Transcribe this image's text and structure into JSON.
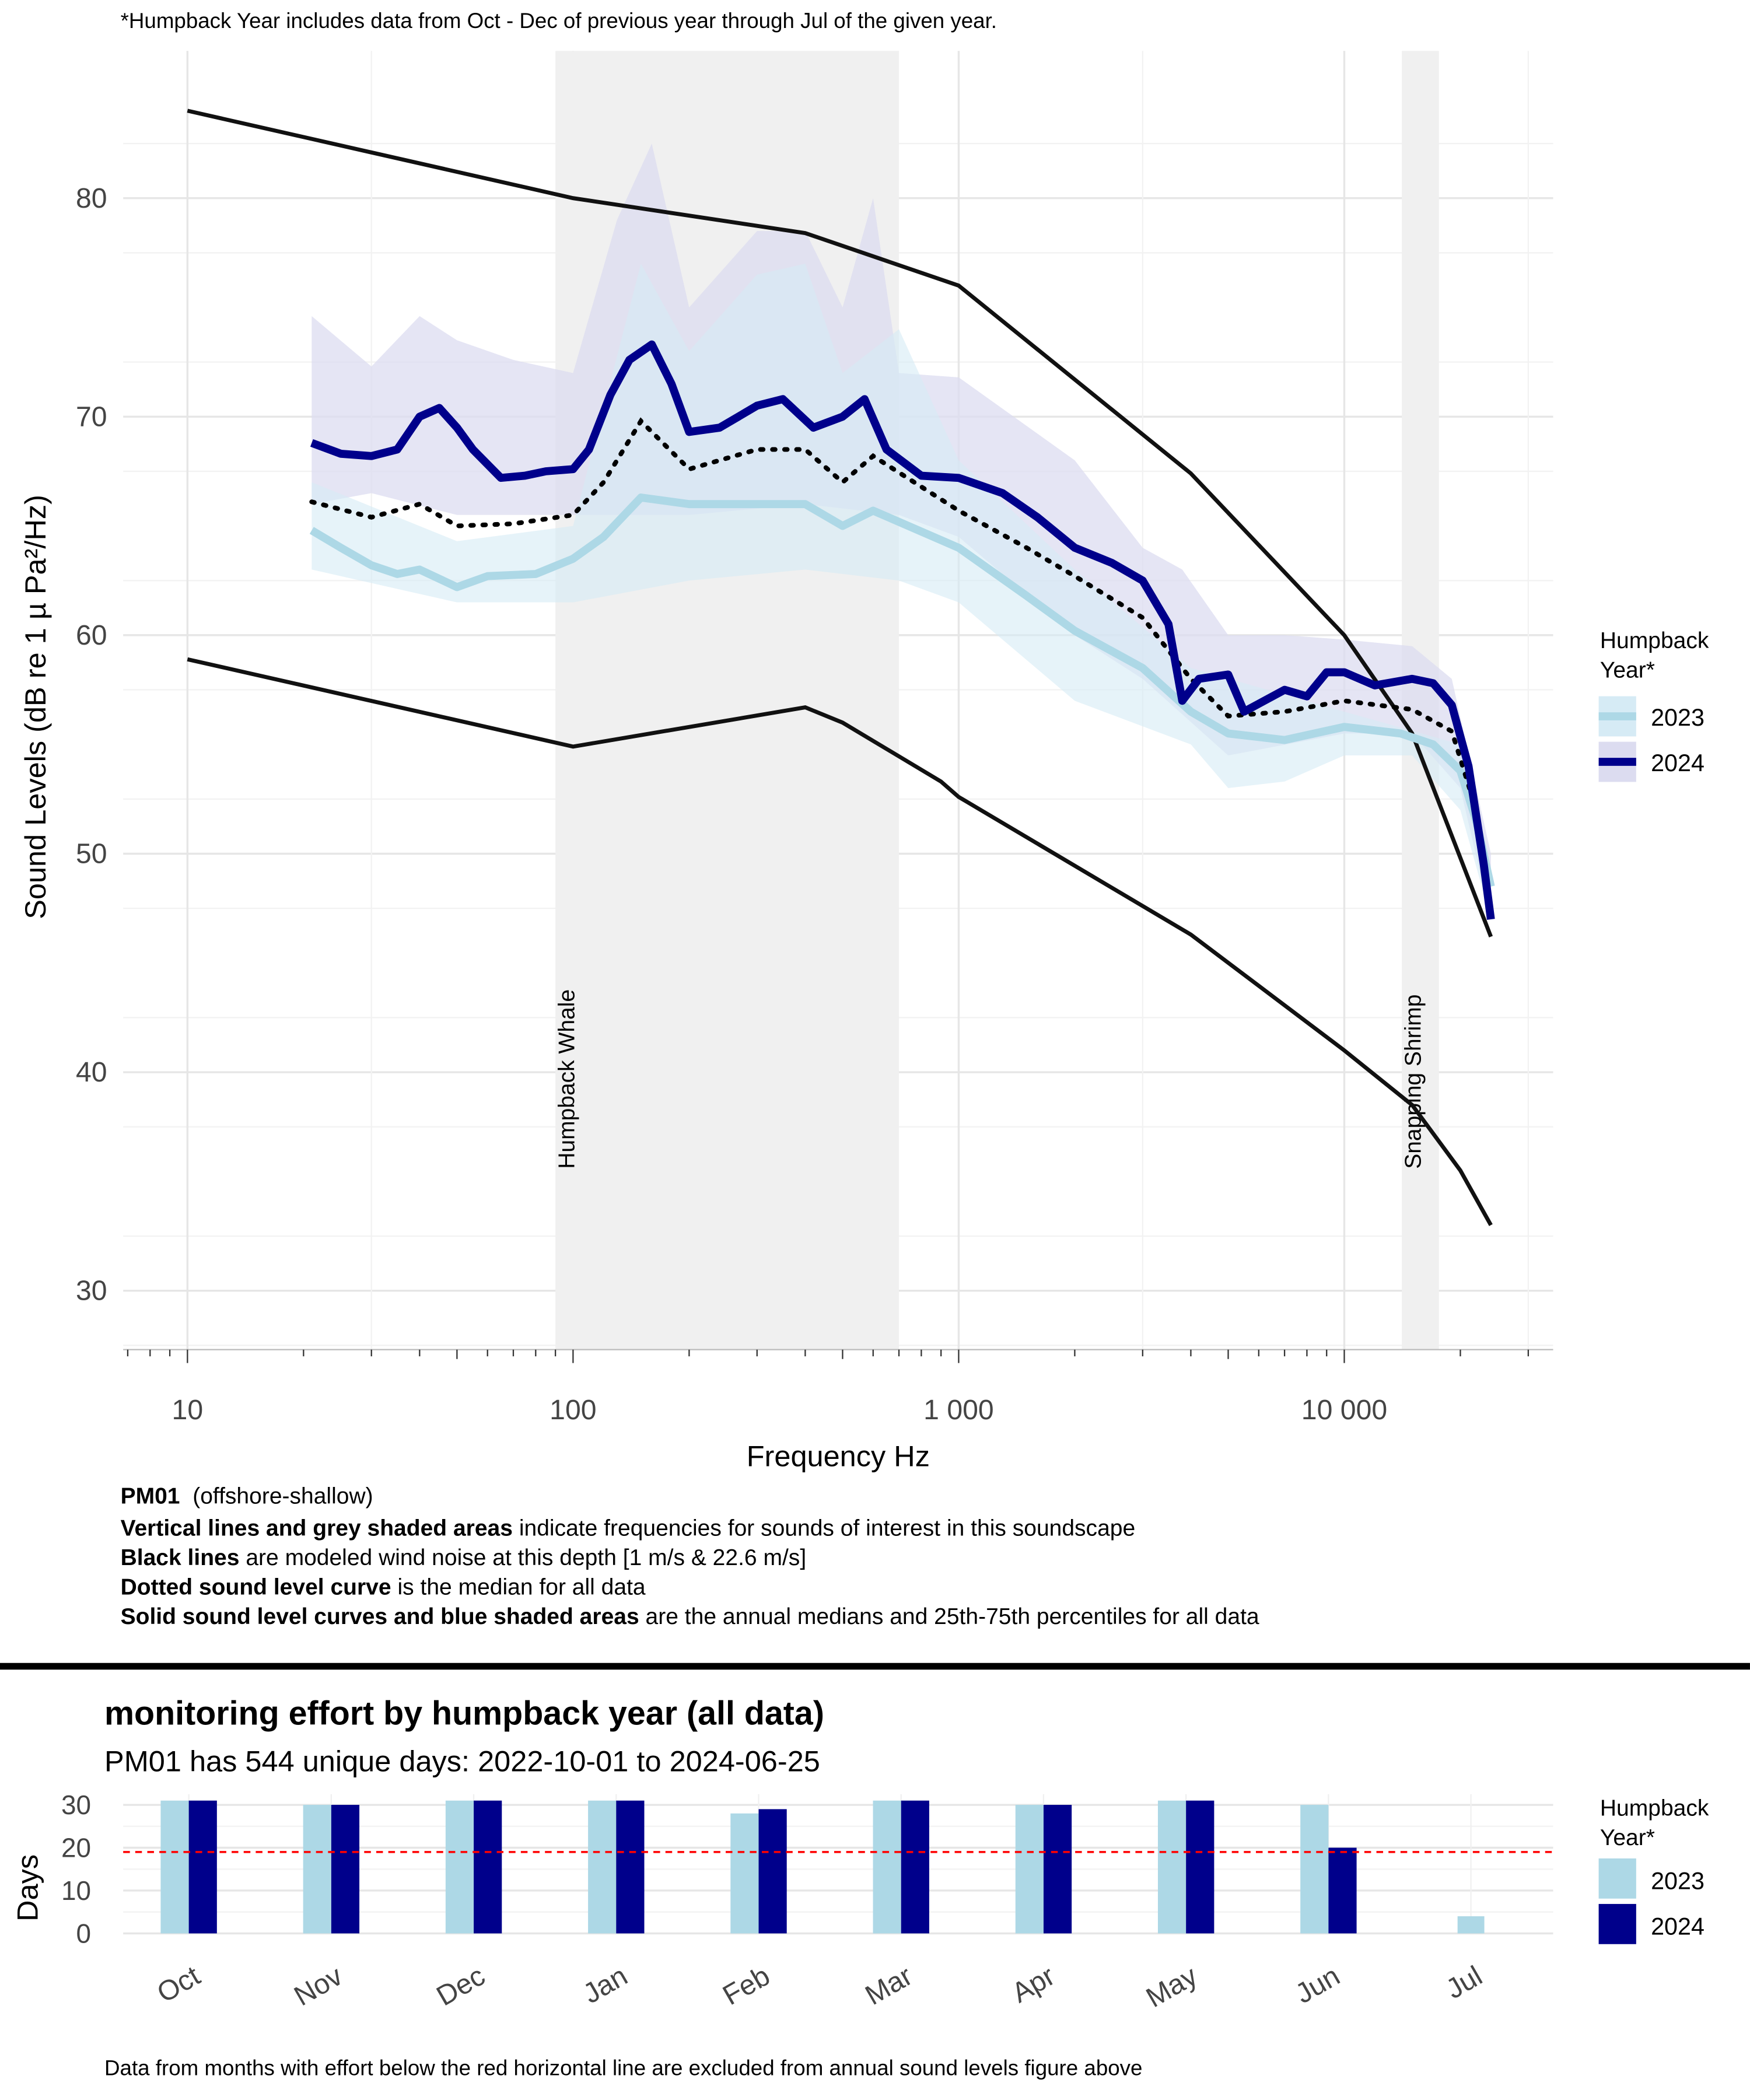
{
  "top_note": "*Humpback Year includes data from Oct - Dec of previous year through Jul of the given year.",
  "colors": {
    "y2023": "#add8e6",
    "y2024": "#00008b",
    "band2023": "#d6ebf5",
    "band2024": "#dcdcf0",
    "grey_region": "#f0f0f0",
    "threshold": "#ff0000"
  },
  "chart_data": [
    {
      "type": "line",
      "xlabel": "Frequency Hz",
      "ylabel": "Sound Levels (dB re 1 µ Pa²/Hz)",
      "x_scale": "log",
      "xlim": [
        7,
        33000
      ],
      "ylim": [
        27,
        86
      ],
      "x_ticks": [
        {
          "v": 10,
          "label": "10"
        },
        {
          "v": 100,
          "label": "100"
        },
        {
          "v": 1000,
          "label": "1 000"
        },
        {
          "v": 10000,
          "label": "10 000"
        }
      ],
      "y_ticks": [
        30,
        40,
        50,
        60,
        70,
        80
      ],
      "grid": true,
      "legend": {
        "title": "Humpback Year*",
        "position": "right",
        "entries": [
          "2023",
          "2024"
        ]
      },
      "regions": [
        {
          "label": "Humpback Whale",
          "from": 90,
          "to": 700
        },
        {
          "label": "Snapping Shrimp",
          "from": 14100,
          "to": 17600
        }
      ],
      "wind_noise": [
        {
          "label": "1 m/s",
          "points": [
            [
              10,
              58.9
            ],
            [
              100,
              54.9
            ],
            [
              400,
              56.7
            ],
            [
              500,
              56
            ],
            [
              900,
              53.3
            ],
            [
              1000,
              52.6
            ],
            [
              4000,
              46.3
            ],
            [
              10000,
              41
            ],
            [
              15000,
              38.5
            ],
            [
              20000,
              35.5
            ],
            [
              24000,
              33
            ]
          ]
        },
        {
          "label": "22.6 m/s",
          "points": [
            [
              10,
              84
            ],
            [
              100,
              80
            ],
            [
              400,
              78.4
            ],
            [
              1000,
              76
            ],
            [
              4000,
              67.4
            ],
            [
              10000,
              60
            ],
            [
              15000,
              55.5
            ],
            [
              24000,
              46.2
            ]
          ]
        }
      ],
      "series": [
        {
          "name": "2023",
          "median": [
            [
              21,
              64.8
            ],
            [
              25,
              64
            ],
            [
              30,
              63.2
            ],
            [
              35,
              62.8
            ],
            [
              40,
              63
            ],
            [
              50,
              62.2
            ],
            [
              60,
              62.7
            ],
            [
              80,
              62.8
            ],
            [
              100,
              63.5
            ],
            [
              120,
              64.5
            ],
            [
              150,
              66.3
            ],
            [
              200,
              66
            ],
            [
              300,
              66
            ],
            [
              400,
              66
            ],
            [
              500,
              65
            ],
            [
              600,
              65.7
            ],
            [
              1000,
              64
            ],
            [
              1500,
              61.8
            ],
            [
              2000,
              60.2
            ],
            [
              3000,
              58.5
            ],
            [
              4000,
              56.5
            ],
            [
              5000,
              55.5
            ],
            [
              7000,
              55.2
            ],
            [
              10000,
              55.8
            ],
            [
              14000,
              55.5
            ],
            [
              17000,
              55
            ],
            [
              20000,
              53.8
            ],
            [
              22000,
              51.5
            ],
            [
              24000,
              48.5
            ]
          ],
          "p75": [
            [
              21,
              67
            ],
            [
              50,
              64.3
            ],
            [
              100,
              65
            ],
            [
              150,
              77
            ],
            [
              200,
              73
            ],
            [
              300,
              76.5
            ],
            [
              400,
              77
            ],
            [
              500,
              72
            ],
            [
              700,
              74
            ],
            [
              1000,
              68
            ],
            [
              2000,
              63
            ],
            [
              4000,
              58.5
            ],
            [
              10000,
              56.5
            ],
            [
              20000,
              55
            ],
            [
              24000,
              49
            ]
          ],
          "p25": [
            [
              21,
              63
            ],
            [
              50,
              61.5
            ],
            [
              100,
              61.5
            ],
            [
              200,
              62.5
            ],
            [
              400,
              63
            ],
            [
              700,
              62.5
            ],
            [
              1000,
              61.5
            ],
            [
              2000,
              57
            ],
            [
              4000,
              55
            ],
            [
              5000,
              53
            ],
            [
              7000,
              53.3
            ],
            [
              10000,
              54.5
            ],
            [
              15000,
              54.5
            ],
            [
              20000,
              52
            ],
            [
              24000,
              47
            ]
          ]
        },
        {
          "name": "2024",
          "median": [
            [
              21,
              68.8
            ],
            [
              25,
              68.3
            ],
            [
              30,
              68.2
            ],
            [
              35,
              68.5
            ],
            [
              40,
              70
            ],
            [
              45,
              70.4
            ],
            [
              50,
              69.5
            ],
            [
              55,
              68.5
            ],
            [
              65,
              67.2
            ],
            [
              75,
              67.3
            ],
            [
              85,
              67.5
            ],
            [
              100,
              67.6
            ],
            [
              110,
              68.5
            ],
            [
              125,
              71
            ],
            [
              140,
              72.6
            ],
            [
              160,
              73.3
            ],
            [
              180,
              71.5
            ],
            [
              200,
              69.3
            ],
            [
              240,
              69.5
            ],
            [
              300,
              70.5
            ],
            [
              350,
              70.8
            ],
            [
              420,
              69.5
            ],
            [
              500,
              70
            ],
            [
              570,
              70.8
            ],
            [
              650,
              68.5
            ],
            [
              800,
              67.3
            ],
            [
              1000,
              67.2
            ],
            [
              1300,
              66.5
            ],
            [
              1600,
              65.4
            ],
            [
              2000,
              64
            ],
            [
              2500,
              63.3
            ],
            [
              3000,
              62.5
            ],
            [
              3500,
              60.5
            ],
            [
              3800,
              57
            ],
            [
              4200,
              58
            ],
            [
              5000,
              58.2
            ],
            [
              5500,
              56.5
            ],
            [
              7000,
              57.5
            ],
            [
              8000,
              57.2
            ],
            [
              9000,
              58.3
            ],
            [
              10000,
              58.3
            ],
            [
              12000,
              57.7
            ],
            [
              15000,
              58
            ],
            [
              17000,
              57.8
            ],
            [
              19000,
              56.8
            ],
            [
              21000,
              54
            ],
            [
              23000,
              49.5
            ],
            [
              24000,
              47
            ]
          ],
          "p75": [
            [
              21,
              74.6
            ],
            [
              30,
              72.3
            ],
            [
              40,
              74.6
            ],
            [
              50,
              73.5
            ],
            [
              70,
              72.6
            ],
            [
              100,
              72
            ],
            [
              130,
              79
            ],
            [
              160,
              82.5
            ],
            [
              200,
              75
            ],
            [
              300,
              78.5
            ],
            [
              400,
              78.5
            ],
            [
              500,
              75
            ],
            [
              600,
              80
            ],
            [
              700,
              72
            ],
            [
              1000,
              71.8
            ],
            [
              2000,
              68
            ],
            [
              3000,
              64
            ],
            [
              3800,
              63
            ],
            [
              5000,
              60
            ],
            [
              7000,
              60
            ],
            [
              10000,
              59.8
            ],
            [
              15000,
              59.5
            ],
            [
              19000,
              58
            ],
            [
              24000,
              50
            ]
          ],
          "p25": [
            [
              21,
              66
            ],
            [
              30,
              66.5
            ],
            [
              50,
              65.5
            ],
            [
              100,
              65.5
            ],
            [
              200,
              65.5
            ],
            [
              400,
              66
            ],
            [
              700,
              65.5
            ],
            [
              1000,
              64.5
            ],
            [
              2000,
              60
            ],
            [
              3000,
              58
            ],
            [
              5000,
              54.5
            ],
            [
              10000,
              55.5
            ],
            [
              15000,
              55.5
            ],
            [
              20000,
              53
            ],
            [
              24000,
              47
            ]
          ]
        },
        {
          "name": "",
          "style": "dotted",
          "median": [
            [
              21,
              66.1
            ],
            [
              30,
              65.4
            ],
            [
              40,
              66
            ],
            [
              50,
              65
            ],
            [
              70,
              65.1
            ],
            [
              100,
              65.5
            ],
            [
              120,
              67
            ],
            [
              150,
              69.8
            ],
            [
              200,
              67.6
            ],
            [
              300,
              68.5
            ],
            [
              400,
              68.5
            ],
            [
              500,
              67
            ],
            [
              600,
              68.2
            ],
            [
              1000,
              65.7
            ],
            [
              1500,
              64
            ],
            [
              2000,
              62.7
            ],
            [
              3000,
              60.8
            ],
            [
              4000,
              58
            ],
            [
              5000,
              56.3
            ],
            [
              7000,
              56.5
            ],
            [
              10000,
              57
            ],
            [
              15000,
              56.6
            ],
            [
              19000,
              55.6
            ],
            [
              22000,
              52
            ],
            [
              24000,
              47.5
            ]
          ]
        }
      ]
    },
    {
      "type": "bar",
      "title": "monitoring effort by humpback year (all data)",
      "subtitle": "PM01 has 544 unique days: 2022-10-01 to 2024-06-25",
      "ylabel": "Days",
      "ylim": [
        0,
        31
      ],
      "y_ticks": [
        0,
        10,
        20,
        30
      ],
      "categories": [
        "Oct",
        "Nov",
        "Dec",
        "Jan",
        "Feb",
        "Mar",
        "Apr",
        "May",
        "Jun",
        "Jul"
      ],
      "series": [
        {
          "name": "2023",
          "values": [
            31,
            30,
            31,
            31,
            28,
            31,
            30,
            31,
            30,
            4
          ]
        },
        {
          "name": "2024",
          "values": [
            31,
            30,
            31,
            31,
            29,
            31,
            30,
            31,
            20,
            null
          ]
        }
      ],
      "threshold": 19,
      "legend": {
        "title": "Humpback Year*",
        "position": "right",
        "entries": [
          "2023",
          "2024"
        ]
      }
    }
  ],
  "caption": {
    "site": "PM01",
    "site_type": "(offshore-shallow)",
    "lines": [
      {
        "bold": "Vertical  lines and grey shaded areas",
        "text": "indicate frequencies for sounds of interest in this soundscape"
      },
      {
        "bold": "Black lines",
        "text": "are modeled wind noise at this depth [1 m/s & 22.6 m/s]"
      },
      {
        "bold": "Dotted sound level curve",
        "text": "is the median for all data"
      },
      {
        "bold": "Solid sound level curves and blue shaded areas",
        "text": "are the annual medians and 25th-75th percentiles for all data"
      }
    ]
  },
  "footer_note": "Data from months with effort below the red horizontal line are excluded from annual sound levels figure above"
}
